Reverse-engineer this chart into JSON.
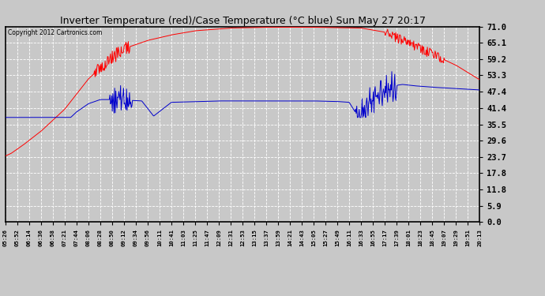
{
  "title": "Inverter Temperature (red)/Case Temperature (°C blue) Sun May 27 20:17",
  "copyright": "Copyright 2012 Cartronics.com",
  "yticks": [
    0.0,
    5.9,
    11.8,
    17.8,
    23.7,
    29.6,
    35.5,
    41.4,
    47.4,
    53.3,
    59.2,
    65.1,
    71.0
  ],
  "ylim": [
    0.0,
    71.0
  ],
  "bg_color": "#c8c8c8",
  "plot_bg_color": "#c8c8c8",
  "grid_color": "#ffffff",
  "red_color": "#ff0000",
  "blue_color": "#0000cc",
  "x_labels": [
    "05:26",
    "05:52",
    "06:14",
    "06:36",
    "06:58",
    "07:21",
    "07:44",
    "08:06",
    "08:28",
    "08:50",
    "09:12",
    "09:34",
    "09:56",
    "10:11",
    "10:41",
    "11:03",
    "11:25",
    "11:47",
    "12:09",
    "12:31",
    "12:53",
    "13:15",
    "13:37",
    "13:59",
    "14:21",
    "14:43",
    "15:05",
    "15:27",
    "15:49",
    "16:11",
    "16:33",
    "16:55",
    "17:17",
    "17:39",
    "18:01",
    "18:23",
    "18:45",
    "19:07",
    "19:29",
    "19:51",
    "20:13"
  ]
}
